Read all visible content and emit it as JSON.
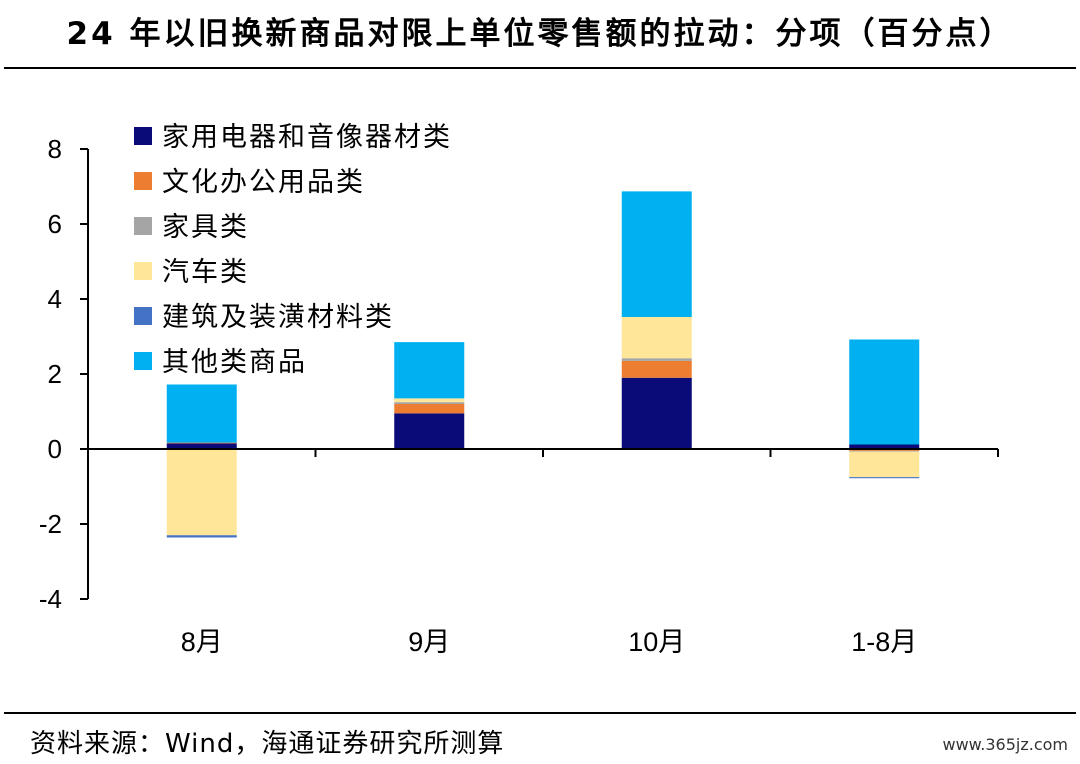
{
  "title": "24 年以旧换新商品对限上单位零售额的拉动：分项（百分点）",
  "source": "资料来源：Wind，海通证券研究所测算",
  "watermark": "www.365jz.com",
  "chart_data": {
    "type": "bar",
    "stacked": true,
    "categories": [
      "8月",
      "9月",
      "10月",
      "1-8月"
    ],
    "ylim": [
      -4,
      8
    ],
    "yticks": [
      -4,
      -2,
      0,
      2,
      4,
      6,
      8
    ],
    "legend_position": "top-left",
    "grid": false,
    "series": [
      {
        "name": "家用电器和音像器材类",
        "color": "#0A0A78",
        "values": [
          0.15,
          0.95,
          1.9,
          0.12
        ]
      },
      {
        "name": "文化办公用品类",
        "color": "#ED7D31",
        "values": [
          0.02,
          0.25,
          0.45,
          -0.05
        ]
      },
      {
        "name": "家具类",
        "color": "#A5A5A5",
        "values": [
          0.0,
          0.05,
          0.07,
          -0.02
        ]
      },
      {
        "name": "汽车类",
        "color": "#FFE699",
        "values": [
          -2.3,
          0.1,
          1.1,
          -0.68
        ]
      },
      {
        "name": "建筑及装潢材料类",
        "color": "#4472C4",
        "values": [
          -0.06,
          0.0,
          0.0,
          -0.03
        ]
      },
      {
        "name": "其他类商品",
        "color": "#00B0F0",
        "values": [
          1.55,
          1.5,
          3.35,
          2.8
        ]
      }
    ]
  }
}
